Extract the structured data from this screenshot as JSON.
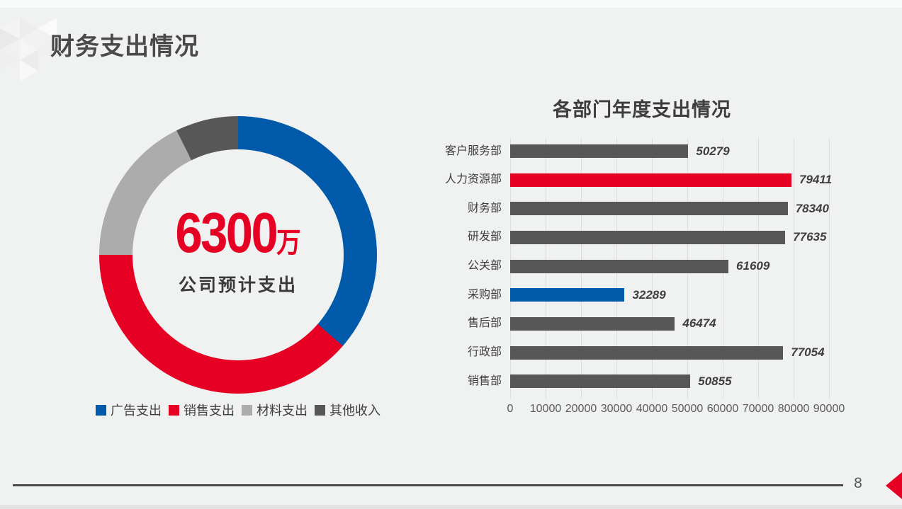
{
  "slide": {
    "title": "财务支出情况",
    "page_number": "8"
  },
  "colors": {
    "accent_red": "#E60023",
    "accent_blue": "#005AA9",
    "pie_light_gray": "#ACACAC",
    "pie_dark_gray": "#575757",
    "bar_gray": "#575757",
    "background": "#F0F1F1",
    "gridline": "#DCDCDC",
    "text_dark": "#3F3F3F",
    "axis_text": "#5A5A5A"
  },
  "chart_data": [
    {
      "type": "pie",
      "subtype": "donut",
      "center_value": "6300",
      "center_unit": "万",
      "center_caption": "公司预计支出",
      "legend_position": "bottom",
      "segments": [
        {
          "label": "广告支出",
          "percent": 36.4,
          "color": "#005AA9"
        },
        {
          "label": "销售支出",
          "percent": 38.6,
          "color": "#E60023"
        },
        {
          "label": "材料支出",
          "percent": 17.7,
          "color": "#ACACAC"
        },
        {
          "label": "其他收入",
          "percent": 7.3,
          "color": "#575757"
        }
      ]
    },
    {
      "type": "bar",
      "orientation": "horizontal",
      "title": "各部门年度支出情况",
      "categories": [
        "客户服务部",
        "人力资源部",
        "财务部",
        "研发部",
        "公关部",
        "采购部",
        "售后部",
        "行政部",
        "销售部"
      ],
      "values": [
        50279,
        79411,
        78340,
        77635,
        61609,
        32289,
        46474,
        77054,
        50855
      ],
      "bar_colors": [
        "#575757",
        "#E60023",
        "#575757",
        "#575757",
        "#575757",
        "#005AA9",
        "#575757",
        "#575757",
        "#575757"
      ],
      "xlim": [
        0,
        90000
      ],
      "x_ticks": [
        0,
        10000,
        20000,
        30000,
        40000,
        50000,
        60000,
        70000,
        80000,
        90000
      ],
      "grid": true,
      "value_labels": true
    }
  ]
}
